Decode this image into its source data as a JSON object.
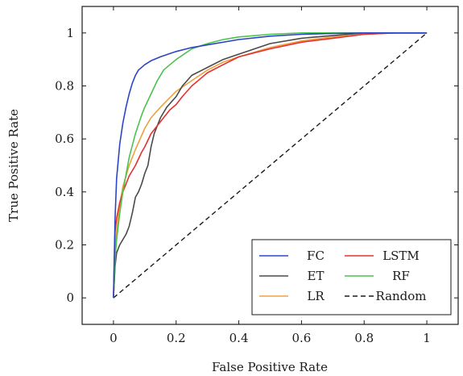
{
  "chart_data": {
    "type": "line",
    "title": "",
    "xlabel": "False Positive Rate",
    "ylabel": "True Positive Rate",
    "xlim": [
      -0.1,
      1.1
    ],
    "ylim": [
      -0.1,
      1.1
    ],
    "xticks": [
      0,
      0.2,
      0.4,
      0.6,
      0.8,
      1
    ],
    "yticks": [
      0,
      0.2,
      0.4,
      0.6,
      0.8,
      1
    ],
    "xtick_labels": [
      "0",
      "0.2",
      "0.4",
      "0.6",
      "0.8",
      "1"
    ],
    "ytick_labels": [
      "0",
      "0.2",
      "0.4",
      "0.6",
      "0.8",
      "1"
    ],
    "grid": false,
    "legend_position": "bottom-right",
    "series": [
      {
        "name": "FC",
        "color": "#2b45c8",
        "dash": "solid",
        "x": [
          0,
          0.005,
          0.01,
          0.02,
          0.03,
          0.04,
          0.05,
          0.06,
          0.07,
          0.08,
          0.1,
          0.12,
          0.15,
          0.2,
          0.25,
          0.3,
          0.4,
          0.5,
          0.6,
          0.7,
          0.8,
          0.9,
          1
        ],
        "y": [
          0,
          0.3,
          0.45,
          0.58,
          0.66,
          0.72,
          0.77,
          0.81,
          0.84,
          0.86,
          0.88,
          0.895,
          0.91,
          0.93,
          0.945,
          0.955,
          0.975,
          0.988,
          0.995,
          0.998,
          1,
          1,
          1
        ]
      },
      {
        "name": "ET",
        "color": "#4a4a4a",
        "dash": "solid",
        "x": [
          0,
          0.005,
          0.01,
          0.02,
          0.03,
          0.04,
          0.05,
          0.06,
          0.07,
          0.08,
          0.09,
          0.1,
          0.11,
          0.12,
          0.13,
          0.15,
          0.17,
          0.2,
          0.22,
          0.25,
          0.3,
          0.35,
          0.4,
          0.5,
          0.6,
          0.7,
          0.8,
          0.9,
          1
        ],
        "y": [
          0,
          0.12,
          0.17,
          0.2,
          0.22,
          0.24,
          0.27,
          0.32,
          0.38,
          0.4,
          0.43,
          0.47,
          0.5,
          0.57,
          0.62,
          0.68,
          0.72,
          0.76,
          0.8,
          0.84,
          0.87,
          0.9,
          0.92,
          0.96,
          0.98,
          0.99,
          1,
          1,
          1
        ]
      },
      {
        "name": "LR",
        "color": "#f0a040",
        "dash": "solid",
        "x": [
          0,
          0.01,
          0.02,
          0.03,
          0.05,
          0.07,
          0.1,
          0.12,
          0.15,
          0.2,
          0.25,
          0.3,
          0.35,
          0.4,
          0.5,
          0.6,
          0.7,
          0.8,
          0.9,
          1
        ],
        "y": [
          0,
          0.25,
          0.35,
          0.42,
          0.5,
          0.56,
          0.64,
          0.68,
          0.72,
          0.78,
          0.82,
          0.86,
          0.89,
          0.91,
          0.945,
          0.97,
          0.985,
          0.995,
          1,
          1
        ]
      },
      {
        "name": "LSTM",
        "color": "#e53030",
        "dash": "solid",
        "x": [
          0,
          0.005,
          0.01,
          0.02,
          0.03,
          0.04,
          0.05,
          0.07,
          0.09,
          0.1,
          0.12,
          0.14,
          0.16,
          0.18,
          0.2,
          0.22,
          0.25,
          0.3,
          0.35,
          0.4,
          0.5,
          0.6,
          0.7,
          0.8,
          0.9,
          1
        ],
        "y": [
          0,
          0.25,
          0.3,
          0.36,
          0.4,
          0.43,
          0.46,
          0.5,
          0.55,
          0.57,
          0.62,
          0.65,
          0.68,
          0.71,
          0.73,
          0.76,
          0.8,
          0.85,
          0.88,
          0.91,
          0.94,
          0.965,
          0.98,
          0.995,
          1,
          1
        ]
      },
      {
        "name": "RF",
        "color": "#4cc24c",
        "dash": "solid",
        "x": [
          0,
          0.005,
          0.01,
          0.02,
          0.03,
          0.05,
          0.07,
          0.09,
          0.1,
          0.12,
          0.14,
          0.16,
          0.18,
          0.2,
          0.25,
          0.3,
          0.35,
          0.4,
          0.5,
          0.6,
          0.7,
          0.8,
          0.9,
          1
        ],
        "y": [
          0,
          0.15,
          0.22,
          0.32,
          0.4,
          0.53,
          0.62,
          0.69,
          0.72,
          0.77,
          0.82,
          0.86,
          0.88,
          0.9,
          0.94,
          0.96,
          0.975,
          0.985,
          0.995,
          1,
          1,
          1,
          1,
          1
        ]
      },
      {
        "name": "Random",
        "color": "#1a1a1a",
        "dash": "dashed",
        "x": [
          0,
          1
        ],
        "y": [
          0,
          1
        ]
      }
    ],
    "legend_order": [
      "FC",
      "LSTM",
      "ET",
      "RF",
      "LR",
      "Random"
    ]
  }
}
